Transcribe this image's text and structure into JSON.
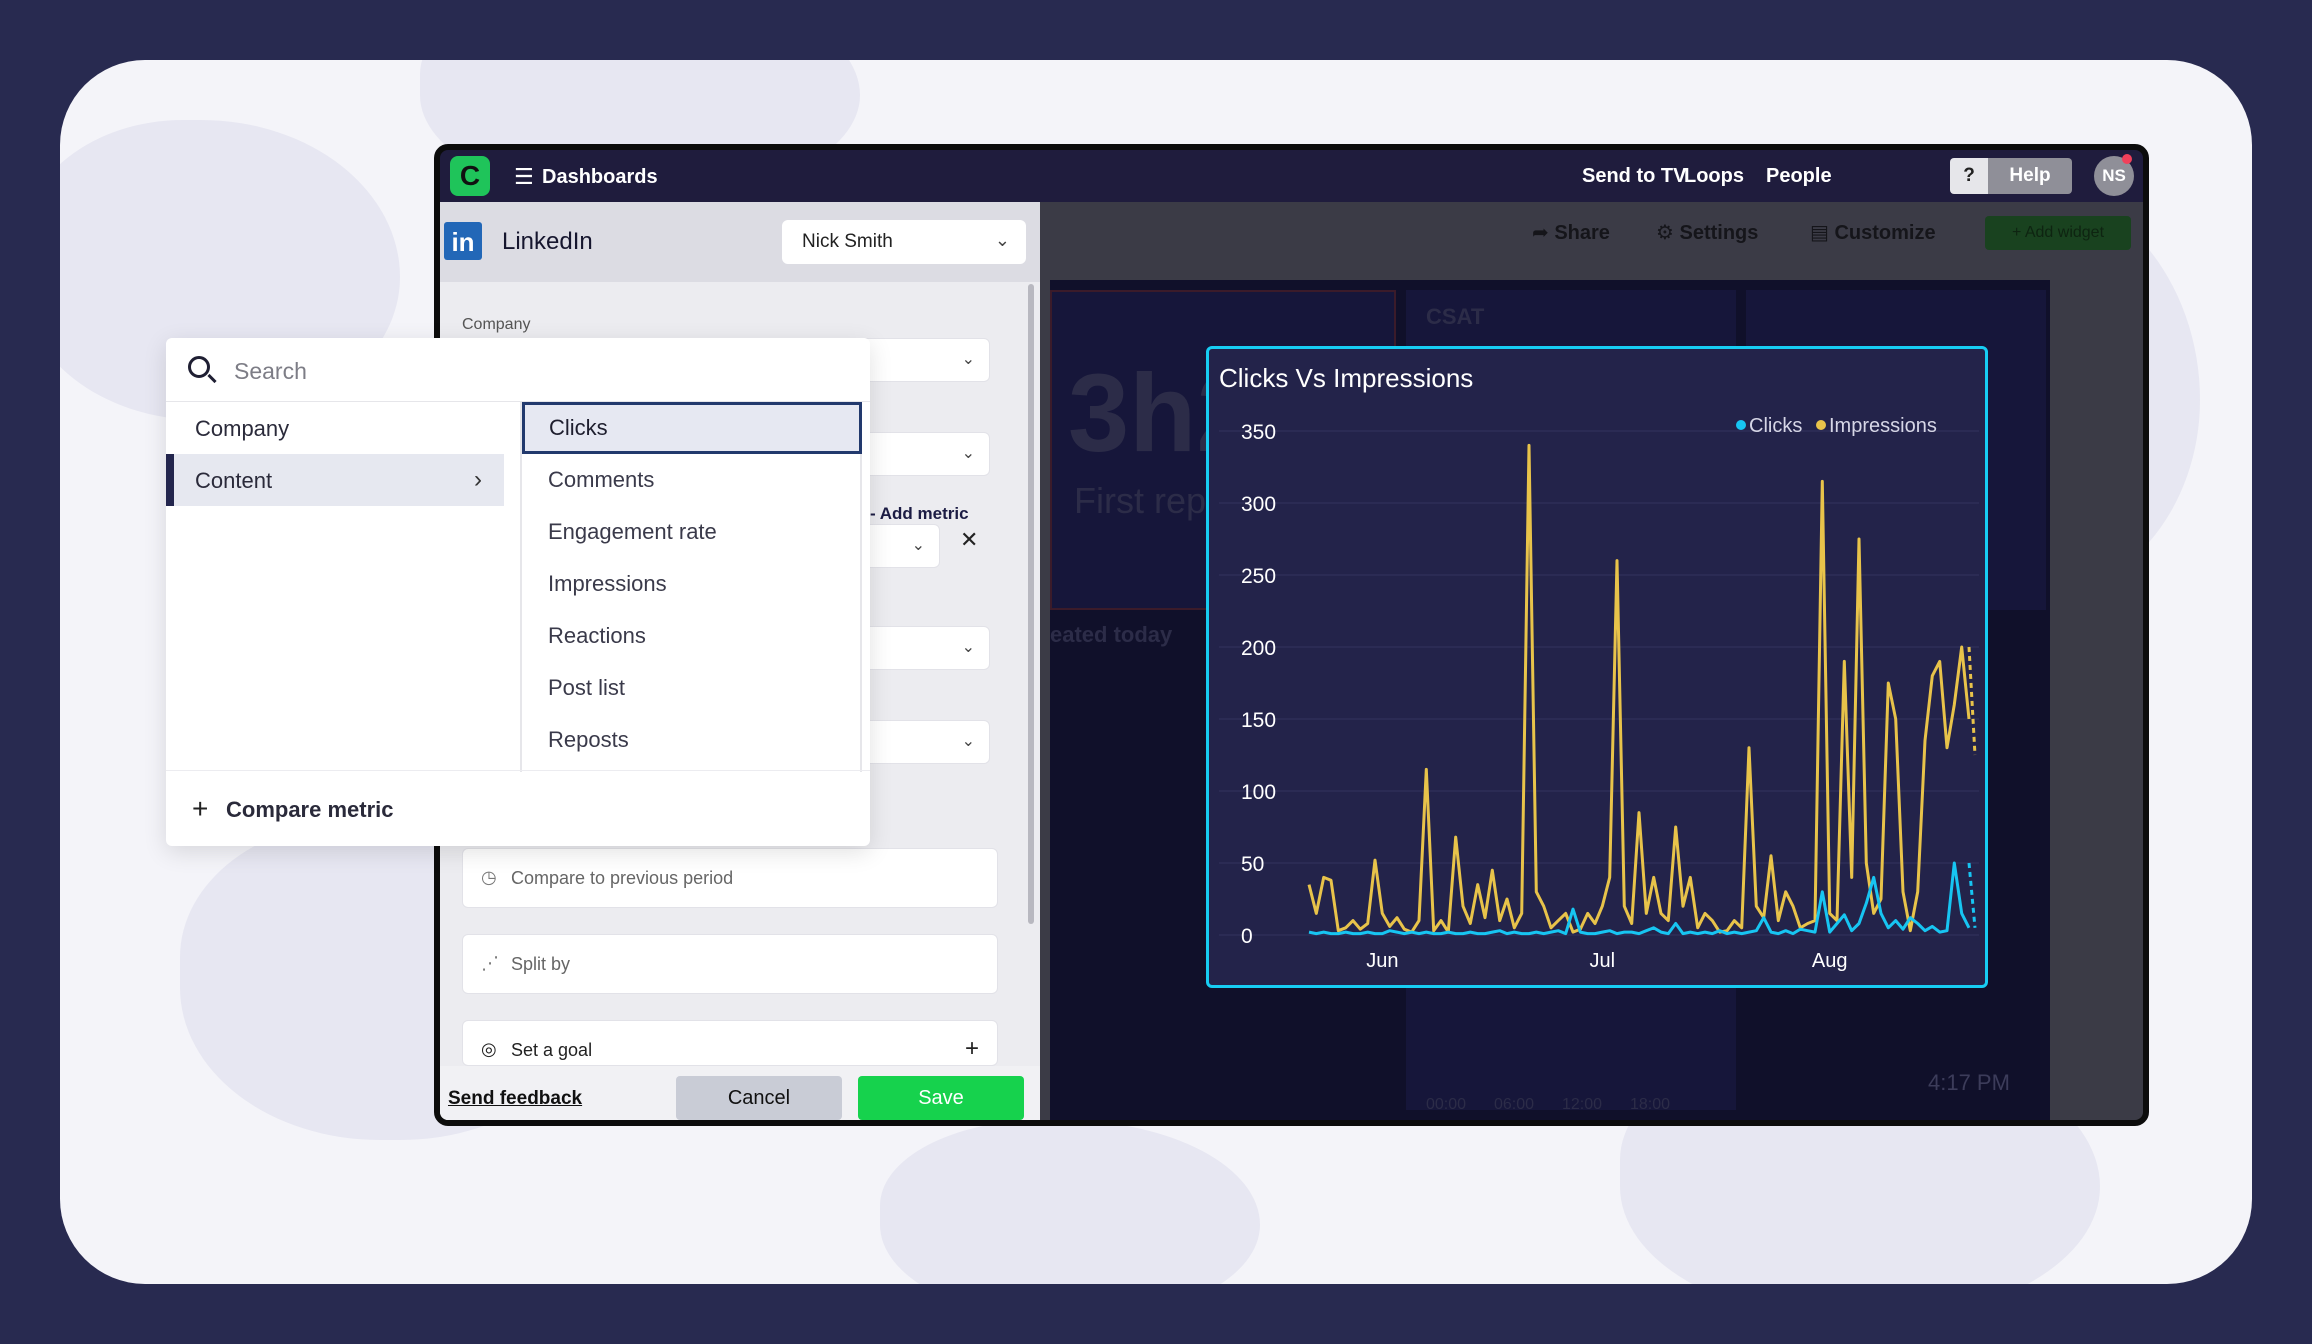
{
  "app": {
    "menu_label": "Dashboards",
    "nav": [
      "Send to TV",
      "Loops",
      "People"
    ],
    "help_question": "?",
    "help_label": "Help",
    "avatar_initials": "NS",
    "logo_glyph": "C"
  },
  "toolbar": {
    "share": "Share",
    "settings": "Settings",
    "customize": "Customize",
    "add_widget": "+ Add widget"
  },
  "background_widgets": {
    "csat_label": "CSAT",
    "big_number": "3h2",
    "first_reply": "First repl",
    "created_today": "eated today",
    "ticks": [
      "00:00",
      "06:00",
      "12:00",
      "18:00"
    ],
    "time": "4:17 PM"
  },
  "panel": {
    "title": "LinkedIn",
    "account": "Nick Smith",
    "company_label": "Company",
    "add_metric": "Add metric",
    "options": {
      "compare_previous": "Compare to previous period",
      "split_by": "Split by",
      "set_goal": "Set a goal"
    },
    "footer": {
      "send_feedback": "Send feedback",
      "cancel": "Cancel",
      "save": "Save"
    }
  },
  "dropdown": {
    "search_placeholder": "Search",
    "categories": [
      {
        "label": "Company"
      },
      {
        "label": "Content"
      }
    ],
    "metrics": [
      "Clicks",
      "Comments",
      "Engagement rate",
      "Impressions",
      "Reactions",
      "Post list",
      "Reposts"
    ],
    "selected_metric": "Clicks",
    "compare_metric": "Compare metric"
  },
  "chart_data": {
    "type": "line",
    "title": "Clicks Vs Impressions",
    "ylim": [
      0,
      350
    ],
    "yticks": [
      0,
      50,
      100,
      150,
      200,
      250,
      300,
      350
    ],
    "xticks": [
      {
        "label": "Jun",
        "at": 10
      },
      {
        "label": "Jul",
        "at": 40
      },
      {
        "label": "Aug",
        "at": 71
      }
    ],
    "legend_position": "top-right",
    "colors": {
      "Clicks": "#17c5f2",
      "Impressions": "#e8c34a"
    },
    "series": [
      {
        "name": "Clicks",
        "values": [
          2,
          1,
          2,
          1,
          1,
          2,
          1,
          1,
          2,
          1,
          1,
          3,
          2,
          1,
          2,
          1,
          2,
          1,
          1,
          2,
          1,
          1,
          2,
          1,
          1,
          2,
          3,
          1,
          2,
          1,
          1,
          2,
          1,
          2,
          3,
          1,
          18,
          2,
          1,
          1,
          2,
          3,
          1,
          2,
          2,
          1,
          3,
          5,
          2,
          1,
          8,
          1,
          2,
          1,
          2,
          1,
          3,
          1,
          2,
          1,
          2,
          3,
          12,
          2,
          1,
          3,
          1,
          4,
          3,
          2,
          30,
          2,
          8,
          14,
          3,
          8,
          22,
          40,
          15,
          5,
          10,
          4,
          12,
          8,
          3,
          6,
          2,
          3,
          50,
          15,
          5
        ]
      },
      {
        "name": "Impressions",
        "values": [
          35,
          15,
          40,
          38,
          3,
          5,
          10,
          4,
          8,
          52,
          15,
          6,
          12,
          4,
          2,
          10,
          115,
          3,
          10,
          2,
          68,
          20,
          8,
          35,
          12,
          45,
          10,
          25,
          5,
          15,
          340,
          30,
          20,
          5,
          10,
          15,
          2,
          4,
          15,
          8,
          20,
          40,
          260,
          20,
          8,
          85,
          15,
          40,
          15,
          10,
          75,
          20,
          40,
          5,
          15,
          10,
          2,
          3,
          10,
          5,
          130,
          20,
          12,
          55,
          10,
          30,
          20,
          5,
          8,
          10,
          315,
          15,
          10,
          190,
          40,
          275,
          50,
          15,
          25,
          175,
          150,
          30,
          3,
          30,
          135,
          180,
          190,
          130,
          160,
          200,
          150
        ]
      }
    ],
    "projected_tail": {
      "Impressions": [
        200,
        125
      ],
      "Clicks": [
        50,
        5
      ]
    }
  }
}
